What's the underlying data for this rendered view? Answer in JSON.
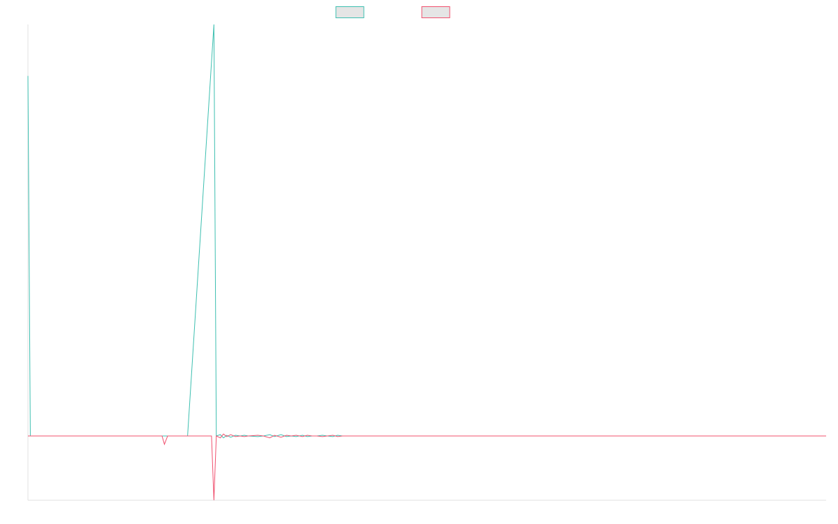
{
  "chart_data": {
    "type": "line",
    "title": "",
    "xlabel": "",
    "ylabel": "",
    "xlim": [
      0,
      1000
    ],
    "ylim": [
      -100,
      640
    ],
    "grid": false,
    "legend_position": "top-center",
    "colors": {
      "series_a": "#3dbfb0",
      "series_b": "#f0506e",
      "legend_fill": "#e5e5e5",
      "axis": "#e2e2e2"
    },
    "series": [
      {
        "color_key": "series_a",
        "points": [
          [
            0,
            560
          ],
          [
            3,
            0
          ],
          [
            200,
            0
          ],
          [
            233,
            640
          ],
          [
            236,
            0
          ],
          [
            241,
            2
          ],
          [
            245,
            -3
          ],
          [
            249,
            1
          ],
          [
            254,
            -2
          ],
          [
            260,
            1
          ],
          [
            266,
            0
          ],
          [
            271,
            1
          ],
          [
            276,
            0
          ],
          [
            288,
            -1
          ],
          [
            295,
            0
          ],
          [
            303,
            2
          ],
          [
            309,
            -1
          ],
          [
            317,
            2
          ],
          [
            324,
            -1
          ],
          [
            330,
            0
          ],
          [
            336,
            -1
          ],
          [
            344,
            1
          ],
          [
            350,
            -1
          ],
          [
            356,
            0
          ],
          [
            362,
            0
          ],
          [
            369,
            1
          ],
          [
            375,
            0
          ],
          [
            382,
            -1
          ],
          [
            388,
            1
          ],
          [
            394,
            0
          ],
          [
            1000,
            0
          ]
        ]
      },
      {
        "color_key": "series_b",
        "points": [
          [
            0,
            0
          ],
          [
            168,
            0
          ],
          [
            171,
            -13
          ],
          [
            175,
            0
          ],
          [
            230,
            0
          ],
          [
            233,
            -100
          ],
          [
            236,
            0
          ],
          [
            241,
            -3
          ],
          [
            245,
            3
          ],
          [
            249,
            -1
          ],
          [
            254,
            2
          ],
          [
            260,
            -1
          ],
          [
            266,
            0
          ],
          [
            271,
            -1
          ],
          [
            276,
            0
          ],
          [
            288,
            1
          ],
          [
            295,
            0
          ],
          [
            303,
            -3
          ],
          [
            309,
            1
          ],
          [
            317,
            -2
          ],
          [
            324,
            1
          ],
          [
            330,
            0
          ],
          [
            336,
            1
          ],
          [
            344,
            -1
          ],
          [
            350,
            1
          ],
          [
            356,
            0
          ],
          [
            362,
            0
          ],
          [
            369,
            -1
          ],
          [
            375,
            0
          ],
          [
            382,
            1
          ],
          [
            388,
            -1
          ],
          [
            394,
            0
          ],
          [
            1000,
            0
          ]
        ]
      }
    ]
  }
}
